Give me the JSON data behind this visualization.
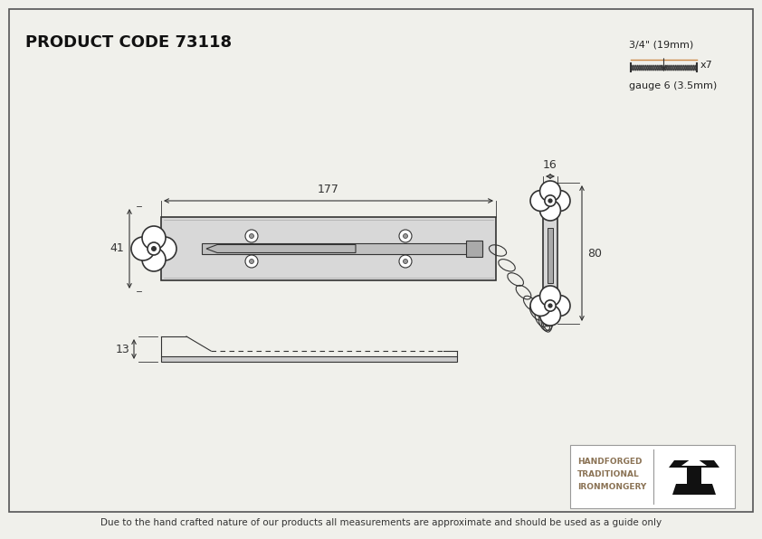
{
  "title": "PRODUCT CODE 73118",
  "background_color": "#f0f0eb",
  "border_color": "#555555",
  "line_color": "#333333",
  "dim_177": "177",
  "dim_41": "41",
  "dim_80": "80",
  "dim_16": "16",
  "dim_13": "13",
  "screw_label": "3/4\" (19mm)",
  "screw_x7": "x7",
  "gauge_label": "gauge 6 (3.5mm)",
  "footer_text": "Due to the hand crafted nature of our products all measurements are approximate and should be used as a guide only",
  "brand_line1": "HANDFORGED",
  "brand_line2": "TRADITIONAL",
  "brand_line3": "IRONMONGERY",
  "screw_color": "#cc8844",
  "brand_text_color": "#8B7355"
}
